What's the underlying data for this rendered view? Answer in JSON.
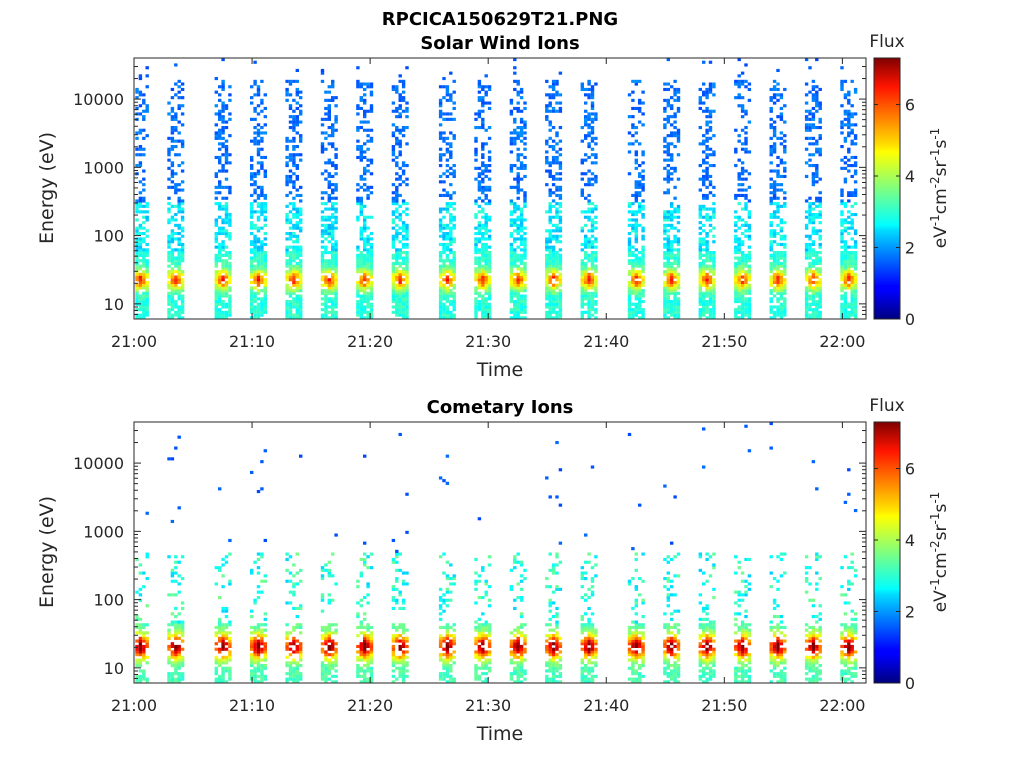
{
  "figure_title": "RPCICA150629T21.PNG",
  "chart_data": [
    {
      "type": "heatmap",
      "title": "Solar Wind Ions",
      "xlabel": "Time",
      "ylabel": "Energy (eV)",
      "x_ticks": [
        "21:00",
        "21:10",
        "21:20",
        "21:30",
        "21:40",
        "21:50",
        "22:00"
      ],
      "x_range": [
        "21:00",
        "22:02"
      ],
      "y_scale": "log",
      "y_ticks": [
        10,
        100,
        1000,
        10000
      ],
      "y_tick_labels": [
        "10",
        "100",
        "1000",
        "10000"
      ],
      "y_range": [
        6,
        40000
      ],
      "sweep_times": [
        "21:00",
        "21:03",
        "21:07",
        "21:10",
        "21:13",
        "21:16",
        "21:19",
        "21:22",
        "21:26",
        "21:29",
        "21:32",
        "21:35",
        "21:38",
        "21:42",
        "21:45",
        "21:48",
        "21:51",
        "21:54",
        "21:57",
        "22:00"
      ],
      "colorbar": {
        "label_title": "Flux",
        "range": [
          0,
          7.3
        ],
        "ticks": [
          0,
          2,
          4,
          6
        ],
        "tick_labels": [
          "0",
          "2",
          "4",
          "6"
        ],
        "colormap": "jet"
      }
    },
    {
      "type": "heatmap",
      "title": "Cometary Ions",
      "xlabel": "Time",
      "ylabel": "Energy (eV)",
      "x_ticks": [
        "21:00",
        "21:10",
        "21:20",
        "21:30",
        "21:40",
        "21:50",
        "22:00"
      ],
      "x_range": [
        "21:00",
        "22:02"
      ],
      "y_scale": "log",
      "y_ticks": [
        10,
        100,
        1000,
        10000
      ],
      "y_tick_labels": [
        "10",
        "100",
        "1000",
        "10000"
      ],
      "y_range": [
        6,
        40000
      ],
      "sweep_times": [
        "21:00",
        "21:03",
        "21:07",
        "21:10",
        "21:13",
        "21:16",
        "21:19",
        "21:22",
        "21:26",
        "21:29",
        "21:32",
        "21:35",
        "21:38",
        "21:42",
        "21:45",
        "21:48",
        "21:51",
        "21:54",
        "21:57",
        "22:00"
      ],
      "colorbar": {
        "label_title": "Flux",
        "range": [
          0,
          7.3
        ],
        "ticks": [
          0,
          2,
          4,
          6
        ],
        "tick_labels": [
          "0",
          "2",
          "4",
          "6"
        ],
        "colormap": "jet"
      }
    }
  ],
  "colorbar_units": {
    "base": "eV",
    "sup1": "-1",
    "cm": "cm",
    "sup2": "-2",
    "sr": "sr",
    "sup3": "-1",
    "s": "s",
    "sup4": "-1"
  }
}
